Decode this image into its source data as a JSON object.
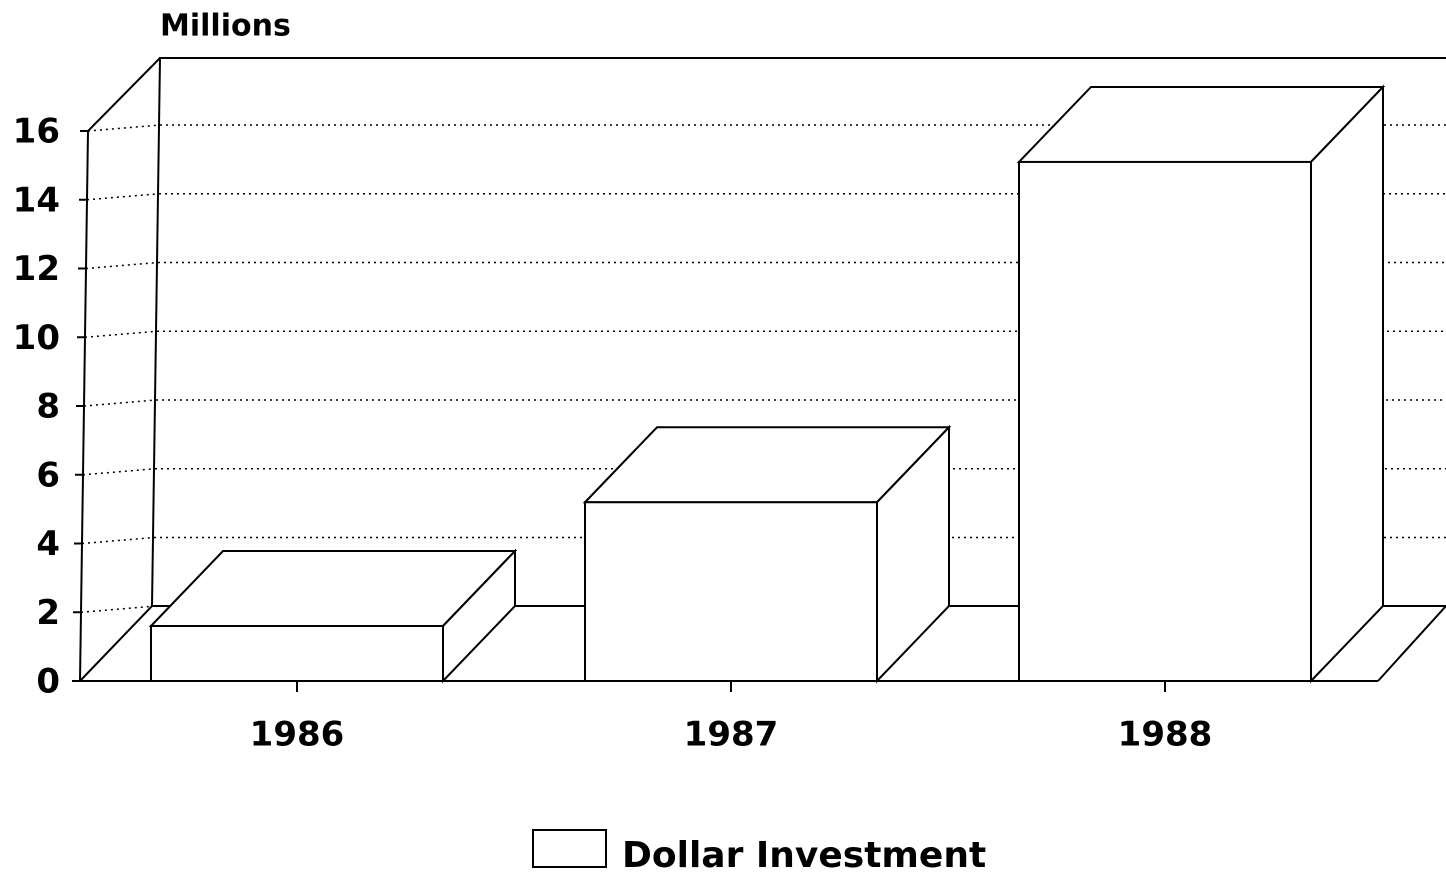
{
  "chart_data": {
    "type": "bar3d",
    "y_axis_label": "Millions",
    "categories": [
      "1986",
      "1987",
      "1988"
    ],
    "series": [
      {
        "name": "Dollar Investment",
        "color": "#ffffff",
        "values": [
          1.6,
          5.2,
          15.1
        ]
      }
    ],
    "ylim": [
      0,
      16
    ],
    "yticks": [
      0,
      2,
      4,
      6,
      8,
      10,
      12,
      14,
      16
    ],
    "grid": true,
    "legend": "bottom"
  }
}
